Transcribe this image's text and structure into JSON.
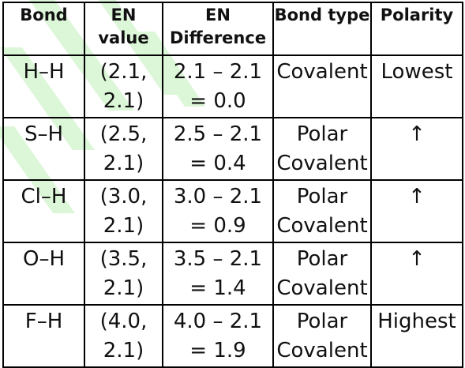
{
  "table": {
    "headers": [
      "Bond",
      "EN value",
      "EN Difference",
      "Bond type",
      "Polarity"
    ],
    "rows": [
      {
        "bond": "H–H",
        "en_value": "(2.1,\n2.1)",
        "en_difference": "2.1 – 2.1\n= 0.0",
        "bond_type": "Covalent",
        "polarity": "Lowest"
      },
      {
        "bond": "S–H",
        "en_value": "(2.5,\n2.1)",
        "en_difference": "2.5 – 2.1\n= 0.4",
        "bond_type": "Polar\nCovalent",
        "polarity": "↑"
      },
      {
        "bond": "Cl–H",
        "en_value": "(3.0,\n2.1)",
        "en_difference": "3.0 – 2.1\n= 0.9",
        "bond_type": "Polar\nCovalent",
        "polarity": "↑"
      },
      {
        "bond": "O–H",
        "en_value": "(3.5,\n2.1)",
        "en_difference": "3.5 – 2.1\n= 1.4",
        "bond_type": "Polar\nCovalent",
        "polarity": "↑"
      },
      {
        "bond": "F–H",
        "en_value": "(4.0,\n2.1)",
        "en_difference": "4.0 – 2.1\n= 1.9",
        "bond_type": "Polar\nCovalent",
        "polarity": "Highest"
      }
    ]
  },
  "colors": {
    "watermark": "#d8f5d4",
    "border": "#000000",
    "text": "#111111"
  }
}
